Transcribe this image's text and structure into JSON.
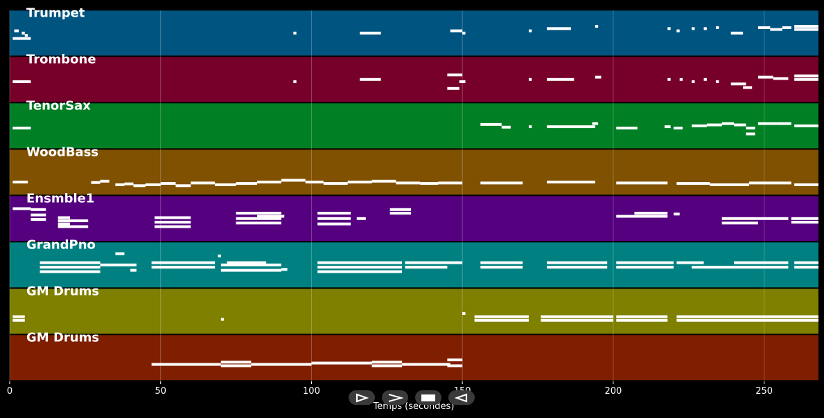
{
  "chart_data": {
    "type": "piano-roll",
    "xlabel": "Temps (secondes)",
    "xlim": [
      0,
      268
    ],
    "xticks": [
      0,
      50,
      100,
      150,
      200,
      250
    ],
    "grid": true,
    "tracks": [
      {
        "name": "Trumpet",
        "color": "#005580",
        "notes": [
          [
            1,
            7,
            0.62
          ],
          [
            1.5,
            3,
            0.45
          ],
          [
            4,
            5,
            0.5
          ],
          [
            5,
            6,
            0.55
          ],
          [
            94,
            95,
            0.5
          ],
          [
            116,
            123,
            0.5
          ],
          [
            146,
            150,
            0.45
          ],
          [
            150,
            151,
            0.5
          ],
          [
            172,
            173,
            0.45
          ],
          [
            178,
            186,
            0.4
          ],
          [
            194,
            195,
            0.35
          ],
          [
            218,
            219,
            0.4
          ],
          [
            221,
            222,
            0.45
          ],
          [
            226,
            227,
            0.4
          ],
          [
            230,
            231,
            0.4
          ],
          [
            234,
            235,
            0.38
          ],
          [
            239,
            243,
            0.5
          ],
          [
            248,
            252,
            0.38
          ],
          [
            252,
            256,
            0.42
          ],
          [
            256,
            259,
            0.38
          ],
          [
            260,
            268,
            0.35
          ],
          [
            260,
            268,
            0.42
          ]
        ]
      },
      {
        "name": "Trombone",
        "color": "#77002a",
        "notes": [
          [
            1,
            7,
            0.55
          ],
          [
            94,
            95,
            0.55
          ],
          [
            116,
            123,
            0.5
          ],
          [
            145,
            150,
            0.4
          ],
          [
            145,
            149,
            0.7
          ],
          [
            149,
            151,
            0.55
          ],
          [
            172,
            173,
            0.5
          ],
          [
            178,
            187,
            0.5
          ],
          [
            194,
            196,
            0.45
          ],
          [
            218,
            219,
            0.5
          ],
          [
            222,
            223,
            0.5
          ],
          [
            226,
            227,
            0.55
          ],
          [
            230,
            231,
            0.5
          ],
          [
            234,
            235,
            0.55
          ],
          [
            239,
            244,
            0.6
          ],
          [
            243,
            246,
            0.68
          ],
          [
            248,
            253,
            0.45
          ],
          [
            253,
            258,
            0.48
          ],
          [
            260,
            268,
            0.42
          ],
          [
            260,
            268,
            0.5
          ]
        ]
      },
      {
        "name": "TenorSax",
        "color": "#007f25",
        "notes": [
          [
            1,
            7,
            0.55
          ],
          [
            156,
            163,
            0.47
          ],
          [
            163,
            166,
            0.53
          ],
          [
            172,
            173,
            0.52
          ],
          [
            178,
            194,
            0.52
          ],
          [
            193,
            195,
            0.45
          ],
          [
            201,
            208,
            0.55
          ],
          [
            217,
            219,
            0.52
          ],
          [
            220,
            223,
            0.55
          ],
          [
            226,
            231,
            0.5
          ],
          [
            231,
            236,
            0.48
          ],
          [
            236,
            240,
            0.45
          ],
          [
            240,
            244,
            0.48
          ],
          [
            244,
            247,
            0.55
          ],
          [
            244,
            247,
            0.68
          ],
          [
            248,
            254,
            0.45
          ],
          [
            254,
            259,
            0.45
          ],
          [
            260,
            268,
            0.5
          ]
        ]
      },
      {
        "name": "WoodBass",
        "color": "#7f5100",
        "notes": [
          [
            1,
            6,
            0.72
          ],
          [
            27,
            30,
            0.73
          ],
          [
            30,
            33,
            0.7
          ],
          [
            35,
            38,
            0.78
          ],
          [
            38,
            41,
            0.76
          ],
          [
            41,
            45,
            0.8
          ],
          [
            45,
            50,
            0.78
          ],
          [
            50,
            55,
            0.75
          ],
          [
            55,
            60,
            0.8
          ],
          [
            60,
            63,
            0.74
          ],
          [
            63,
            68,
            0.74
          ],
          [
            68,
            75,
            0.78
          ],
          [
            75,
            82,
            0.75
          ],
          [
            82,
            90,
            0.72
          ],
          [
            90,
            98,
            0.68
          ],
          [
            98,
            104,
            0.72
          ],
          [
            104,
            112,
            0.75
          ],
          [
            112,
            120,
            0.72
          ],
          [
            120,
            128,
            0.7
          ],
          [
            128,
            136,
            0.74
          ],
          [
            136,
            142,
            0.75
          ],
          [
            142,
            150,
            0.74
          ],
          [
            156,
            170,
            0.74
          ],
          [
            178,
            194,
            0.72
          ],
          [
            201,
            218,
            0.74
          ],
          [
            221,
            232,
            0.75
          ],
          [
            232,
            245,
            0.78
          ],
          [
            245,
            259,
            0.74
          ],
          [
            260,
            268,
            0.78
          ]
        ]
      },
      {
        "name": "Ensmble1",
        "color": "#55007f",
        "notes": [
          [
            1,
            7,
            0.28
          ],
          [
            7,
            12,
            0.3
          ],
          [
            7,
            12,
            0.42
          ],
          [
            7,
            12,
            0.52
          ],
          [
            16,
            20,
            0.48
          ],
          [
            16,
            20,
            0.62
          ],
          [
            16,
            26,
            0.55
          ],
          [
            16,
            26,
            0.68
          ],
          [
            48,
            60,
            0.48
          ],
          [
            48,
            60,
            0.58
          ],
          [
            48,
            60,
            0.68
          ],
          [
            75,
            90,
            0.38
          ],
          [
            75,
            90,
            0.5
          ],
          [
            75,
            90,
            0.6
          ],
          [
            82,
            91,
            0.45
          ],
          [
            102,
            113,
            0.38
          ],
          [
            102,
            113,
            0.5
          ],
          [
            102,
            113,
            0.62
          ],
          [
            115,
            118,
            0.5
          ],
          [
            126,
            133,
            0.3
          ],
          [
            126,
            133,
            0.38
          ],
          [
            201,
            218,
            0.45
          ],
          [
            207,
            218,
            0.38
          ],
          [
            220,
            222,
            0.4
          ],
          [
            236,
            248,
            0.5
          ],
          [
            236,
            248,
            0.6
          ],
          [
            248,
            258,
            0.5
          ],
          [
            259,
            268,
            0.5
          ],
          [
            259,
            268,
            0.58
          ]
        ]
      },
      {
        "name": "GrandPno",
        "color": "#008080",
        "notes": [
          [
            10,
            30,
            0.45
          ],
          [
            10,
            30,
            0.55
          ],
          [
            10,
            30,
            0.65
          ],
          [
            30,
            42,
            0.5
          ],
          [
            35,
            38,
            0.25
          ],
          [
            40,
            42,
            0.62
          ],
          [
            47,
            68,
            0.45
          ],
          [
            47,
            68,
            0.55
          ],
          [
            69,
            70,
            0.3
          ],
          [
            70,
            90,
            0.5
          ],
          [
            70,
            90,
            0.62
          ],
          [
            72,
            85,
            0.45
          ],
          [
            90,
            92,
            0.6
          ],
          [
            102,
            130,
            0.45
          ],
          [
            102,
            130,
            0.55
          ],
          [
            102,
            130,
            0.65
          ],
          [
            131,
            145,
            0.55
          ],
          [
            131,
            150,
            0.45
          ],
          [
            156,
            170,
            0.45
          ],
          [
            156,
            170,
            0.55
          ],
          [
            178,
            198,
            0.45
          ],
          [
            178,
            198,
            0.55
          ],
          [
            201,
            220,
            0.45
          ],
          [
            201,
            220,
            0.55
          ],
          [
            221,
            230,
            0.45
          ],
          [
            226,
            240,
            0.55
          ],
          [
            240,
            258,
            0.45
          ],
          [
            240,
            258,
            0.55
          ],
          [
            260,
            268,
            0.45
          ],
          [
            260,
            268,
            0.55
          ]
        ]
      },
      {
        "name": "GM Drums",
        "color": "#7f7f00",
        "notes": [
          [
            1,
            5,
            0.62
          ],
          [
            1,
            5,
            0.7
          ],
          [
            70,
            71,
            0.68
          ],
          [
            150,
            151,
            0.55
          ],
          [
            154,
            172,
            0.62
          ],
          [
            154,
            172,
            0.7
          ],
          [
            176,
            200,
            0.62
          ],
          [
            176,
            200,
            0.7
          ],
          [
            201,
            218,
            0.62
          ],
          [
            201,
            218,
            0.7
          ],
          [
            221,
            268,
            0.62
          ],
          [
            221,
            268,
            0.7
          ]
        ]
      },
      {
        "name": "GM Drums",
        "color": "#7f1f00",
        "notes": [
          [
            47,
            70,
            0.65
          ],
          [
            70,
            80,
            0.6
          ],
          [
            70,
            80,
            0.68
          ],
          [
            80,
            100,
            0.65
          ],
          [
            100,
            120,
            0.62
          ],
          [
            120,
            130,
            0.6
          ],
          [
            120,
            130,
            0.68
          ],
          [
            130,
            146,
            0.65
          ],
          [
            145,
            150,
            0.55
          ],
          [
            145,
            150,
            0.68
          ]
        ]
      }
    ]
  },
  "controls": [
    {
      "name": "play-button",
      "icon": "play-outline-icon"
    },
    {
      "name": "next-button",
      "icon": "chevron-right-icon"
    },
    {
      "name": "stop-button",
      "icon": "stop-icon"
    },
    {
      "name": "rewind-button",
      "icon": "play-reverse-icon"
    }
  ]
}
